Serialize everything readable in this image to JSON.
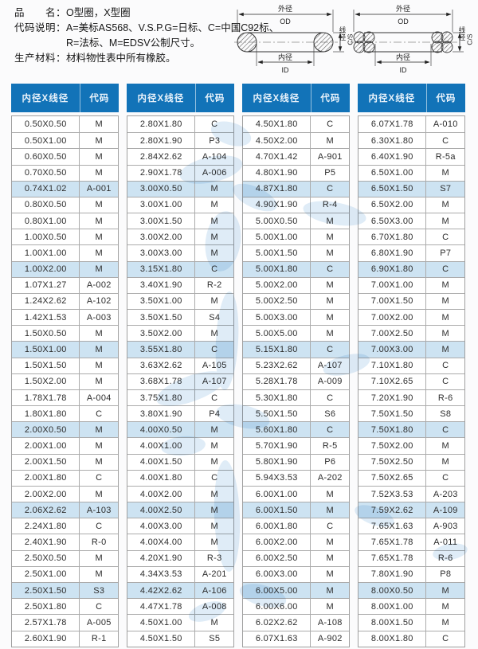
{
  "info": {
    "name_label": "品　　名：",
    "name_value": "O型圈，X型圈",
    "code_label": "代码说明：",
    "code_value1": "A=美标AS568、V.S.P.G=日标、C=中国C92标、",
    "code_value2": "R=法标、M=EDSV公制尺寸。",
    "material_label": "生产材料：",
    "material_value": "材料物性表中所有橡胶。"
  },
  "diagrams": {
    "labels": {
      "od_cn": "外径",
      "od_en": "OD",
      "id_cn": "内径",
      "id_en": "ID",
      "cs_cn": "线径",
      "cs_en": "C/S"
    }
  },
  "table": {
    "col_headers": [
      "内径X线径",
      "代码"
    ],
    "columns": [
      [
        [
          "0.50X0.50",
          "M"
        ],
        [
          "0.50X1.00",
          "M"
        ],
        [
          "0.60X0.50",
          "M"
        ],
        [
          "0.70X0.50",
          "M"
        ],
        [
          "0.74X1.02",
          "A-001"
        ],
        [
          "0.80X0.50",
          "M"
        ],
        [
          "0.80X1.00",
          "M"
        ],
        [
          "1.00X0.50",
          "M"
        ],
        [
          "1.00X1.00",
          "M"
        ],
        [
          "1.00X2.00",
          "M"
        ],
        [
          "1.07X1.27",
          "A-002"
        ],
        [
          "1.24X2.62",
          "A-102"
        ],
        [
          "1.42X1.53",
          "A-003"
        ],
        [
          "1.50X0.50",
          "M"
        ],
        [
          "1.50X1.00",
          "M"
        ],
        [
          "1.50X1.50",
          "M"
        ],
        [
          "1.50X2.00",
          "M"
        ],
        [
          "1.78X1.78",
          "A-004"
        ],
        [
          "1.80X1.80",
          "C"
        ],
        [
          "2.00X0.50",
          "M"
        ],
        [
          "2.00X1.00",
          "M"
        ],
        [
          "2.00X1.50",
          "M"
        ],
        [
          "2.00X1.80",
          "C"
        ],
        [
          "2.00X2.00",
          "M"
        ],
        [
          "2.06X2.62",
          "A-103"
        ],
        [
          "2.24X1.80",
          "C"
        ],
        [
          "2.40X1.90",
          "R-0"
        ],
        [
          "2.50X0.50",
          "M"
        ],
        [
          "2.50X1.00",
          "M"
        ],
        [
          "2.50X1.50",
          "S3"
        ],
        [
          "2.50X1.80",
          "C"
        ],
        [
          "2.57X1.78",
          "A-005"
        ],
        [
          "2.60X1.90",
          "R-1"
        ]
      ],
      [
        [
          "2.80X1.80",
          "C"
        ],
        [
          "2.80X1.90",
          "P3"
        ],
        [
          "2.84X2.62",
          "A-104"
        ],
        [
          "2.90X1.78",
          "A-006"
        ],
        [
          "3.00X0.50",
          "M"
        ],
        [
          "3.00X1.00",
          "M"
        ],
        [
          "3.00X1.50",
          "M"
        ],
        [
          "3.00X2.00",
          "M"
        ],
        [
          "3.00X3.00",
          "M"
        ],
        [
          "3.15X1.80",
          "C"
        ],
        [
          "3.40X1.90",
          "R-2"
        ],
        [
          "3.50X1.00",
          "M"
        ],
        [
          "3.50X1.50",
          "S4"
        ],
        [
          "3.50X2.00",
          "M"
        ],
        [
          "3.55X1.80",
          "C"
        ],
        [
          "3.63X2.62",
          "A-105"
        ],
        [
          "3.68X1.78",
          "A-107"
        ],
        [
          "3.75X1.80",
          "C"
        ],
        [
          "3.80X1.90",
          "P4"
        ],
        [
          "4.00X0.50",
          "M"
        ],
        [
          "4.00X1.00",
          "M"
        ],
        [
          "4.00X1.50",
          "M"
        ],
        [
          "4.00X1.80",
          "C"
        ],
        [
          "4.00X2.00",
          "M"
        ],
        [
          "4.00X2.50",
          "M"
        ],
        [
          "4.00X3.00",
          "M"
        ],
        [
          "4.00X4.00",
          "M"
        ],
        [
          "4.20X1.90",
          "R-3"
        ],
        [
          "4.34X3.53",
          "A-201"
        ],
        [
          "4.42X2.62",
          "A-106"
        ],
        [
          "4.47X1.78",
          "A-008"
        ],
        [
          "4.50X1.00",
          "M"
        ],
        [
          "4.50X1.50",
          "S5"
        ]
      ],
      [
        [
          "4.50X1.80",
          "C"
        ],
        [
          "4.50X2.00",
          "M"
        ],
        [
          "4.70X1.42",
          "A-901"
        ],
        [
          "4.80X1.90",
          "P5"
        ],
        [
          "4.87X1.80",
          "C"
        ],
        [
          "4.90X1.90",
          "R-4"
        ],
        [
          "5.00X0.50",
          "M"
        ],
        [
          "5.00X1.00",
          "M"
        ],
        [
          "5.00X1.50",
          "M"
        ],
        [
          "5.00X1.80",
          "C"
        ],
        [
          "5.00X2.00",
          "M"
        ],
        [
          "5.00X2.50",
          "M"
        ],
        [
          "5.00X3.00",
          "M"
        ],
        [
          "5.00X5.00",
          "M"
        ],
        [
          "5.15X1.80",
          "C"
        ],
        [
          "5.23X2.62",
          "A-107"
        ],
        [
          "5.28X1.78",
          "A-009"
        ],
        [
          "5.30X1.80",
          "C"
        ],
        [
          "5.50X1.50",
          "S6"
        ],
        [
          "5.60X1.80",
          "C"
        ],
        [
          "5.70X1.90",
          "R-5"
        ],
        [
          "5.80X1.90",
          "P6"
        ],
        [
          "5.94X3.53",
          "A-202"
        ],
        [
          "6.00X1.00",
          "M"
        ],
        [
          "6.00X1.50",
          "M"
        ],
        [
          "6.00X1.80",
          "C"
        ],
        [
          "6.00X2.00",
          "M"
        ],
        [
          "6.00X2.50",
          "M"
        ],
        [
          "6.00X3.00",
          "M"
        ],
        [
          "6.00X5.00",
          "M"
        ],
        [
          "6.00X6.00",
          "M"
        ],
        [
          "6.02X2.62",
          "A-108"
        ],
        [
          "6.07X1.63",
          "A-902"
        ]
      ],
      [
        [
          "6.07X1.78",
          "A-010"
        ],
        [
          "6.30X1.80",
          "C"
        ],
        [
          "6.40X1.90",
          "R-5a"
        ],
        [
          "6.50X1.00",
          "M"
        ],
        [
          "6.50X1.50",
          "S7"
        ],
        [
          "6.50X2.00",
          "M"
        ],
        [
          "6.50X3.00",
          "M"
        ],
        [
          "6.70X1.80",
          "C"
        ],
        [
          "6.80X1.90",
          "P7"
        ],
        [
          "6.90X1.80",
          "C"
        ],
        [
          "7.00X1.00",
          "M"
        ],
        [
          "7.00X1.50",
          "M"
        ],
        [
          "7.00X2.00",
          "M"
        ],
        [
          "7.00X2.50",
          "M"
        ],
        [
          "7.00X3.00",
          "M"
        ],
        [
          "7.10X1.80",
          "C"
        ],
        [
          "7.10X2.65",
          "C"
        ],
        [
          "7.20X1.90",
          "R-6"
        ],
        [
          "7.50X1.50",
          "S8"
        ],
        [
          "7.50X1.80",
          "C"
        ],
        [
          "7.50X2.00",
          "M"
        ],
        [
          "7.50X2.50",
          "M"
        ],
        [
          "7.50X2.65",
          "C"
        ],
        [
          "7.52X3.53",
          "A-203"
        ],
        [
          "7.59X2.62",
          "A-109"
        ],
        [
          "7.65X1.63",
          "A-903"
        ],
        [
          "7.65X1.78",
          "A-011"
        ],
        [
          "7.65X1.78",
          "R-6"
        ],
        [
          "7.80X1.90",
          "P8"
        ],
        [
          "8.00X0.50",
          "M"
        ],
        [
          "8.00X1.00",
          "M"
        ],
        [
          "8.00X1.50",
          "M"
        ],
        [
          "8.00X1.80",
          "C"
        ]
      ]
    ]
  },
  "colors": {
    "accent": "#1273b8",
    "row_highlight": "#cde3f2",
    "watermark": "#b7d4ec",
    "header_text": "#eaf3fb"
  }
}
